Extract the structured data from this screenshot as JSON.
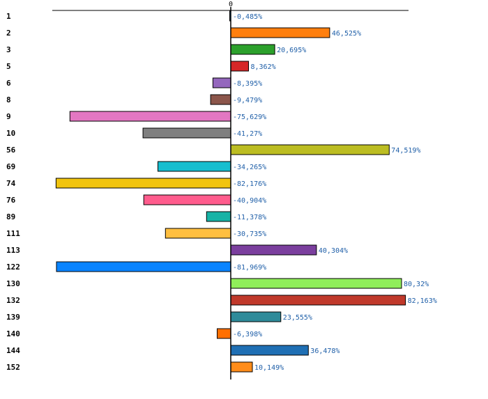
{
  "chart_data": {
    "type": "bar",
    "orientation": "horizontal",
    "title": "",
    "xlabel": "",
    "ylabel": "",
    "xlim": [
      -100,
      100
    ],
    "zero_tick_label": "0",
    "grid": false,
    "categories": [
      "1",
      "2",
      "3",
      "5",
      "6",
      "8",
      "9",
      "10",
      "56",
      "69",
      "74",
      "76",
      "89",
      "111",
      "113",
      "122",
      "130",
      "132",
      "139",
      "140",
      "144",
      "152"
    ],
    "values": [
      -0.485,
      46.525,
      20.695,
      8.362,
      -8.395,
      -9.479,
      -75.629,
      -41.27,
      74.519,
      -34.265,
      -82.176,
      -40.904,
      -11.378,
      -30.735,
      40.304,
      -81.969,
      80.32,
      82.163,
      23.555,
      -6.398,
      36.478,
      10.149
    ],
    "value_labels": [
      "-0,485%",
      "46,525%",
      "20,695%",
      "8,362%",
      "-8,395%",
      "-9,479%",
      "-75,629%",
      "-41,27%",
      "74,519%",
      "-34,265%",
      "-82,176%",
      "-40,904%",
      "-11,378%",
      "-30,735%",
      "40,304%",
      "-81,969%",
      "80,32%",
      "82,163%",
      "23,555%",
      "-6,398%",
      "36,478%",
      "10,149%"
    ],
    "colors": [
      "#1f77b4",
      "#ff7f0e",
      "#2ca02c",
      "#d62728",
      "#9467bd",
      "#8c564b",
      "#e377c2",
      "#7f7f7f",
      "#bcbd22",
      "#17becf",
      "#f1c40f",
      "#ff5c8d",
      "#17b3a6",
      "#ffbf40",
      "#7b3f9e",
      "#0a84ff",
      "#90ee5a",
      "#c0392b",
      "#2e8b9a",
      "#ff6f00",
      "#1f6fb4",
      "#ff8c1a"
    ]
  }
}
